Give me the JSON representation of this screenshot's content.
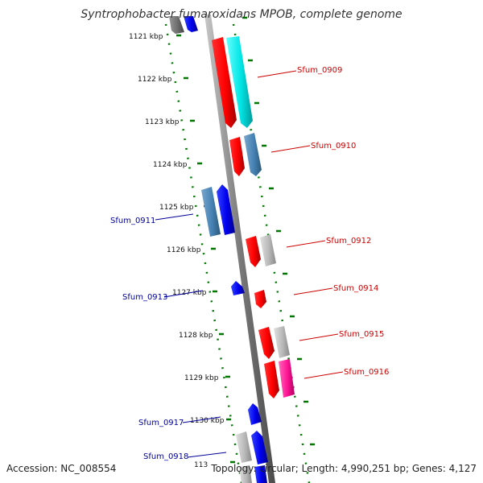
{
  "title": "Syntrophobacter fumaroxidans MPOB, complete genome",
  "footer": {
    "accession": "Accession: NC_008554",
    "topology": "Topology: circular; Length: 4,990,251 bp; Genes: 4,127"
  },
  "ruler": [
    "1121 kbp",
    "1122 kbp",
    "1123 kbp",
    "1124 kbp",
    "1125 kbp",
    "1126 kbp",
    "1127 kbp",
    "1128 kbp",
    "1129 kbp",
    "1130 kbp",
    "113"
  ],
  "genes_right": [
    "Sfum_0909",
    "Sfum_0910",
    "Sfum_0912",
    "Sfum_0914",
    "Sfum_0915",
    "Sfum_0916"
  ],
  "genes_left": [
    "Sfum_0911",
    "Sfum_0913",
    "Sfum_0917",
    "Sfum_0918"
  ],
  "colors": {
    "forward_strand": "#ff0000",
    "reverse_strand": "#0000ee",
    "genome_line": "#7a7a7a",
    "ruler_dots": "#007700",
    "label_forward": "#cc0000",
    "label_reverse": "#000099",
    "cds_steelblue": "#4682b4",
    "cds_cyan": "#00e5e5",
    "cds_gray": "#b0b0b0",
    "cds_pink": "#ff1493"
  }
}
